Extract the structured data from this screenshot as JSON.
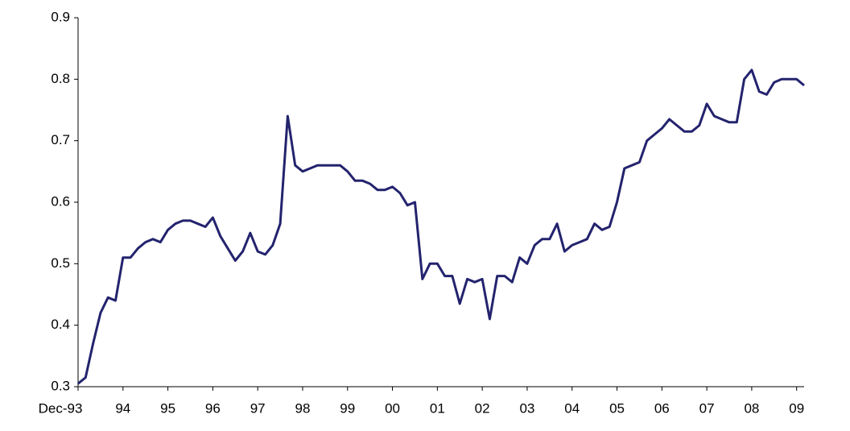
{
  "chart_data": {
    "type": "line",
    "categories": [
      "Dec-93",
      null,
      null,
      null,
      null,
      null,
      "94",
      null,
      null,
      null,
      null,
      null,
      "95",
      null,
      null,
      null,
      null,
      null,
      "96",
      null,
      null,
      null,
      null,
      null,
      "97",
      null,
      null,
      null,
      null,
      null,
      "98",
      null,
      null,
      null,
      null,
      null,
      "99",
      null,
      null,
      null,
      null,
      null,
      "00",
      null,
      null,
      null,
      null,
      null,
      "01",
      null,
      null,
      null,
      null,
      null,
      "02",
      null,
      null,
      null,
      null,
      null,
      "03",
      null,
      null,
      null,
      null,
      null,
      "04",
      null,
      null,
      null,
      null,
      null,
      "05",
      null,
      null,
      null,
      null,
      null,
      "06",
      null,
      null,
      null,
      null,
      null,
      "07",
      null,
      null,
      null,
      null,
      null,
      "08",
      null,
      null,
      null,
      null,
      null,
      "09",
      null
    ],
    "series": [
      {
        "color": "#23236e",
        "values": [
          0.305,
          0.315,
          0.37,
          0.42,
          0.445,
          0.44,
          0.51,
          0.51,
          0.525,
          0.535,
          0.54,
          0.535,
          0.555,
          0.565,
          0.57,
          0.57,
          0.565,
          0.56,
          0.575,
          0.545,
          0.525,
          0.505,
          0.52,
          0.55,
          0.52,
          0.515,
          0.53,
          0.565,
          0.74,
          0.66,
          0.65,
          0.655,
          0.66,
          0.66,
          0.66,
          0.66,
          0.65,
          0.635,
          0.635,
          0.63,
          0.62,
          0.62,
          0.625,
          0.615,
          0.595,
          0.6,
          0.475,
          0.5,
          0.5,
          0.48,
          0.48,
          0.435,
          0.475,
          0.47,
          0.475,
          0.41,
          0.48,
          0.48,
          0.47,
          0.51,
          0.5,
          0.53,
          0.54,
          0.54,
          0.565,
          0.52,
          0.53,
          0.535,
          0.54,
          0.565,
          0.555,
          0.56,
          0.6,
          0.655,
          0.66,
          0.665,
          0.7,
          0.71,
          0.72,
          0.735,
          0.725,
          0.715,
          0.715,
          0.725,
          0.76,
          0.74,
          0.735,
          0.73,
          0.73,
          0.8,
          0.815,
          0.78,
          0.775,
          0.795,
          0.8,
          0.8,
          0.8,
          0.79
        ]
      }
    ],
    "ylim": [
      0.3,
      0.9
    ],
    "yticks": [
      0.3,
      0.4,
      0.5,
      0.6,
      0.7,
      0.8,
      0.9
    ],
    "grid": false
  }
}
